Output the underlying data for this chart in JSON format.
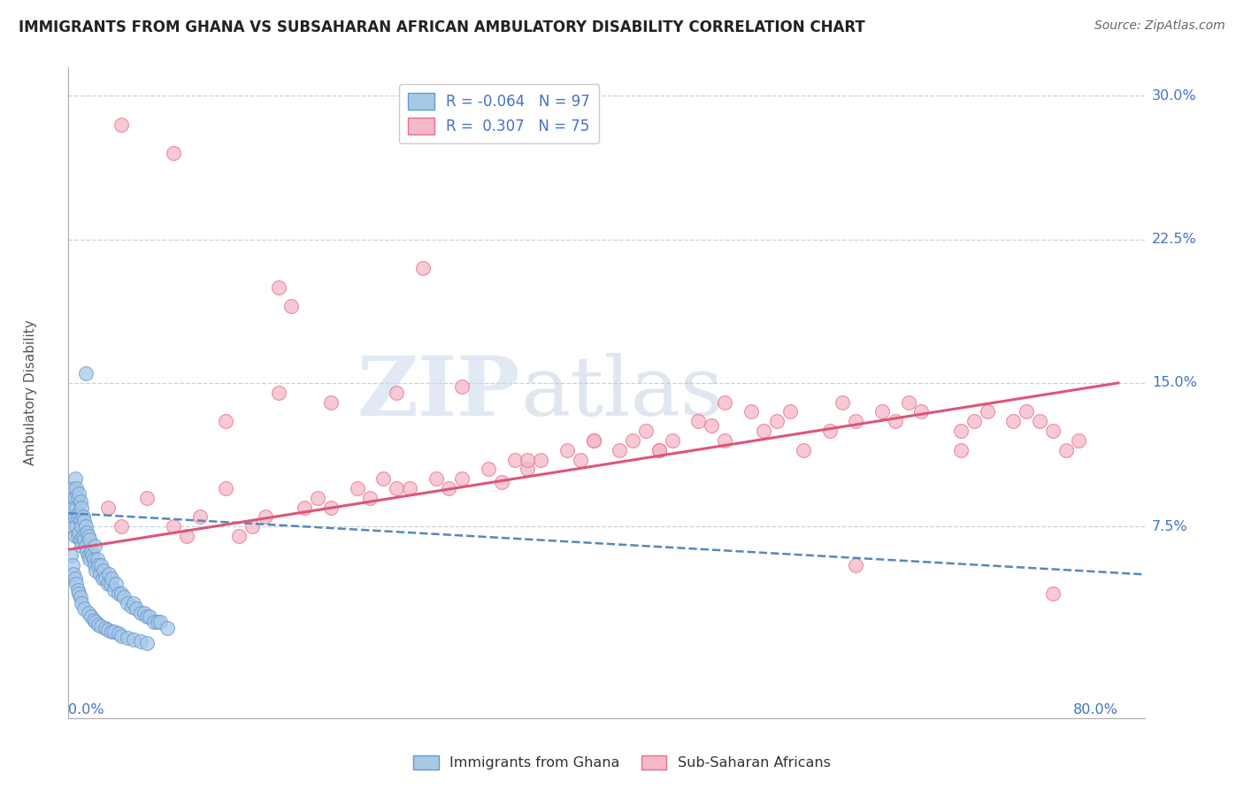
{
  "title": "IMMIGRANTS FROM GHANA VS SUBSAHARAN AFRICAN AMBULATORY DISABILITY CORRELATION CHART",
  "source": "Source: ZipAtlas.com",
  "ylabel": "Ambulatory Disability",
  "color_blue": "#a8c8e8",
  "color_blue_edge": "#6699cc",
  "color_pink": "#f4b8c8",
  "color_pink_edge": "#e8708a",
  "color_blue_trend": "#5588bb",
  "color_pink_trend": "#dd5577",
  "color_axis_label": "#4472c4",
  "color_title": "#222222",
  "color_grid": "#c8d0e0",
  "color_watermark": "#dde4f0",
  "background": "#ffffff",
  "watermark_zip": "ZIP",
  "watermark_atlas": "atlas",
  "xlim": [
    0.0,
    0.82
  ],
  "ylim": [
    -0.025,
    0.315
  ],
  "ytick_vals": [
    0.075,
    0.15,
    0.225,
    0.3
  ],
  "ytick_labels": [
    "7.5%",
    "15.0%",
    "22.5%",
    "30.0%"
  ],
  "legend_texts": [
    "R = -0.064   N = 97",
    "R =  0.307   N = 75"
  ],
  "bottom_legend": [
    "Immigrants from Ghana",
    "Sub-Saharan Africans"
  ],
  "ghana_x": [
    0.003,
    0.003,
    0.004,
    0.004,
    0.004,
    0.005,
    0.005,
    0.005,
    0.005,
    0.006,
    0.006,
    0.006,
    0.007,
    0.007,
    0.007,
    0.008,
    0.008,
    0.008,
    0.009,
    0.009,
    0.009,
    0.01,
    0.01,
    0.01,
    0.011,
    0.011,
    0.012,
    0.012,
    0.013,
    0.013,
    0.014,
    0.014,
    0.015,
    0.015,
    0.016,
    0.016,
    0.017,
    0.018,
    0.019,
    0.02,
    0.02,
    0.021,
    0.022,
    0.023,
    0.024,
    0.025,
    0.026,
    0.027,
    0.028,
    0.03,
    0.031,
    0.032,
    0.033,
    0.035,
    0.036,
    0.038,
    0.04,
    0.042,
    0.045,
    0.048,
    0.05,
    0.052,
    0.055,
    0.058,
    0.06,
    0.062,
    0.065,
    0.068,
    0.07,
    0.075,
    0.002,
    0.003,
    0.004,
    0.005,
    0.006,
    0.007,
    0.008,
    0.009,
    0.01,
    0.012,
    0.013,
    0.015,
    0.017,
    0.019,
    0.021,
    0.023,
    0.025,
    0.028,
    0.03,
    0.033,
    0.035,
    0.038,
    0.04,
    0.045,
    0.05,
    0.055,
    0.06
  ],
  "ghana_y": [
    0.08,
    0.09,
    0.085,
    0.095,
    0.075,
    0.07,
    0.08,
    0.09,
    0.1,
    0.075,
    0.085,
    0.095,
    0.07,
    0.08,
    0.09,
    0.072,
    0.082,
    0.092,
    0.068,
    0.078,
    0.088,
    0.065,
    0.075,
    0.085,
    0.07,
    0.08,
    0.068,
    0.078,
    0.065,
    0.075,
    0.062,
    0.072,
    0.06,
    0.07,
    0.058,
    0.068,
    0.062,
    0.06,
    0.058,
    0.055,
    0.065,
    0.052,
    0.058,
    0.055,
    0.05,
    0.055,
    0.048,
    0.052,
    0.048,
    0.045,
    0.05,
    0.045,
    0.048,
    0.042,
    0.045,
    0.04,
    0.04,
    0.038,
    0.035,
    0.033,
    0.035,
    0.032,
    0.03,
    0.03,
    0.028,
    0.028,
    0.025,
    0.025,
    0.025,
    0.022,
    0.06,
    0.055,
    0.05,
    0.048,
    0.045,
    0.042,
    0.04,
    0.038,
    0.035,
    0.032,
    0.155,
    0.03,
    0.028,
    0.026,
    0.025,
    0.024,
    0.023,
    0.022,
    0.021,
    0.02,
    0.02,
    0.019,
    0.018,
    0.017,
    0.016,
    0.015,
    0.014
  ],
  "subsaharan_x": [
    0.03,
    0.04,
    0.06,
    0.08,
    0.09,
    0.1,
    0.12,
    0.13,
    0.14,
    0.15,
    0.16,
    0.17,
    0.18,
    0.19,
    0.2,
    0.22,
    0.23,
    0.24,
    0.25,
    0.26,
    0.27,
    0.28,
    0.29,
    0.3,
    0.32,
    0.33,
    0.34,
    0.35,
    0.36,
    0.38,
    0.39,
    0.4,
    0.42,
    0.43,
    0.44,
    0.45,
    0.46,
    0.48,
    0.49,
    0.5,
    0.52,
    0.53,
    0.54,
    0.55,
    0.56,
    0.58,
    0.59,
    0.6,
    0.62,
    0.63,
    0.64,
    0.65,
    0.68,
    0.69,
    0.7,
    0.72,
    0.73,
    0.74,
    0.75,
    0.76,
    0.04,
    0.08,
    0.12,
    0.16,
    0.2,
    0.25,
    0.3,
    0.35,
    0.4,
    0.45,
    0.5,
    0.6,
    0.68,
    0.75,
    0.77
  ],
  "subsaharan_y": [
    0.085,
    0.075,
    0.09,
    0.075,
    0.07,
    0.08,
    0.095,
    0.07,
    0.075,
    0.08,
    0.2,
    0.19,
    0.085,
    0.09,
    0.085,
    0.095,
    0.09,
    0.1,
    0.095,
    0.095,
    0.21,
    0.1,
    0.095,
    0.1,
    0.105,
    0.098,
    0.11,
    0.105,
    0.11,
    0.115,
    0.11,
    0.12,
    0.115,
    0.12,
    0.125,
    0.115,
    0.12,
    0.13,
    0.128,
    0.14,
    0.135,
    0.125,
    0.13,
    0.135,
    0.115,
    0.125,
    0.14,
    0.13,
    0.135,
    0.13,
    0.14,
    0.135,
    0.125,
    0.13,
    0.135,
    0.13,
    0.135,
    0.13,
    0.125,
    0.115,
    0.285,
    0.27,
    0.13,
    0.145,
    0.14,
    0.145,
    0.148,
    0.11,
    0.12,
    0.115,
    0.12,
    0.055,
    0.115,
    0.04,
    0.12
  ],
  "ghana_trend_x0": 0.0,
  "ghana_trend_x1": 0.82,
  "ghana_trend_y0": 0.082,
  "ghana_trend_y1": 0.05,
  "subsaharan_trend_x0": 0.0,
  "subsaharan_trend_x1": 0.8,
  "subsaharan_trend_y0": 0.063,
  "subsaharan_trend_y1": 0.15
}
